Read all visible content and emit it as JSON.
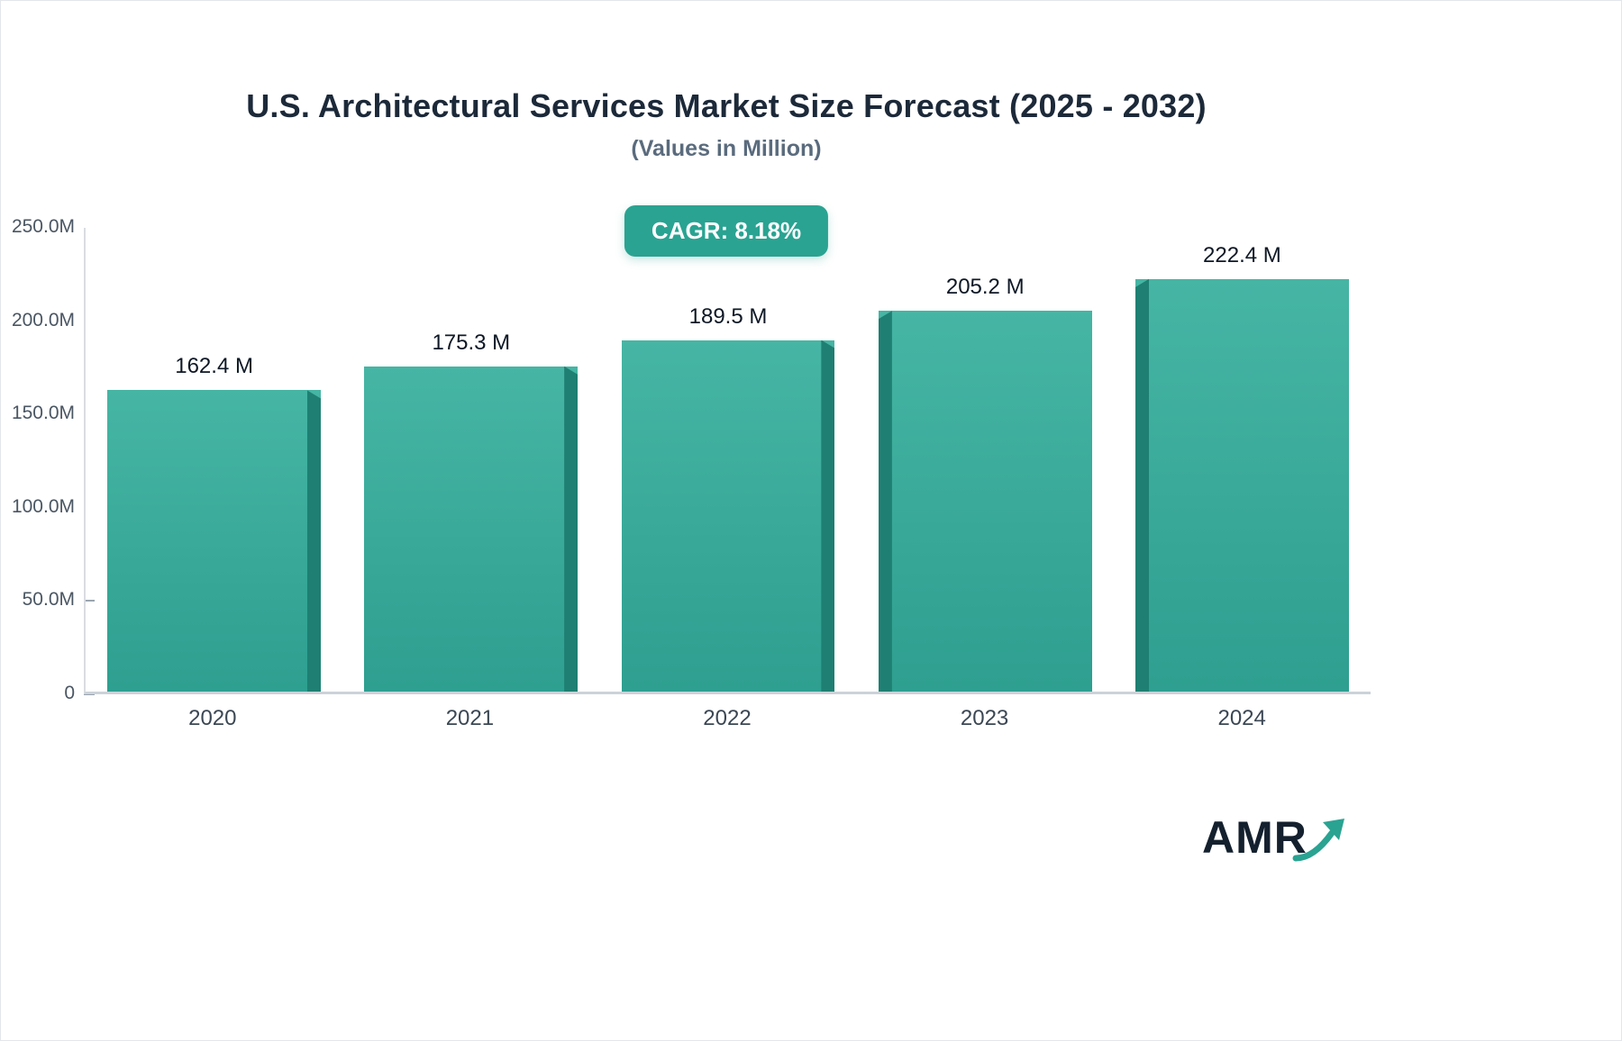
{
  "header": {
    "title": "U.S. Architectural Services Market Size Forecast (2025 - 2032)",
    "subtitle": "(Values in Million)"
  },
  "badge": {
    "label": "CAGR: 8.18%",
    "bg_color": "#2aa392"
  },
  "chart_data": {
    "type": "bar",
    "title": "U.S. Architectural Services Market Size Forecast (2025 - 2032)",
    "subtitle": "(Values in Million)",
    "categories": [
      "2020",
      "2021",
      "2022",
      "2023",
      "2024"
    ],
    "values": [
      162.4,
      175.3,
      189.5,
      205.2,
      222.4
    ],
    "value_labels": [
      "162.4 M",
      "175.3 M",
      "189.5 M",
      "205.2 M",
      "222.4 M"
    ],
    "xlabel": "",
    "ylabel": "",
    "ylim": [
      0,
      250
    ],
    "yticks": [
      0,
      50,
      100,
      150,
      200,
      250
    ],
    "ytick_labels": [
      "0",
      "50.0M",
      "100.0M",
      "150.0M",
      "200.0M",
      "250.0M"
    ],
    "ytick_has_dash": [
      true,
      true,
      false,
      false,
      false,
      false
    ],
    "grid": false,
    "legend": "none",
    "bar_color_top": "#46b5a4",
    "bar_color_bottom": "#2e9f90",
    "bar_side_color": "#1e7f72"
  },
  "logo": {
    "text": "AMR",
    "arrow_color": "#2aa392"
  }
}
